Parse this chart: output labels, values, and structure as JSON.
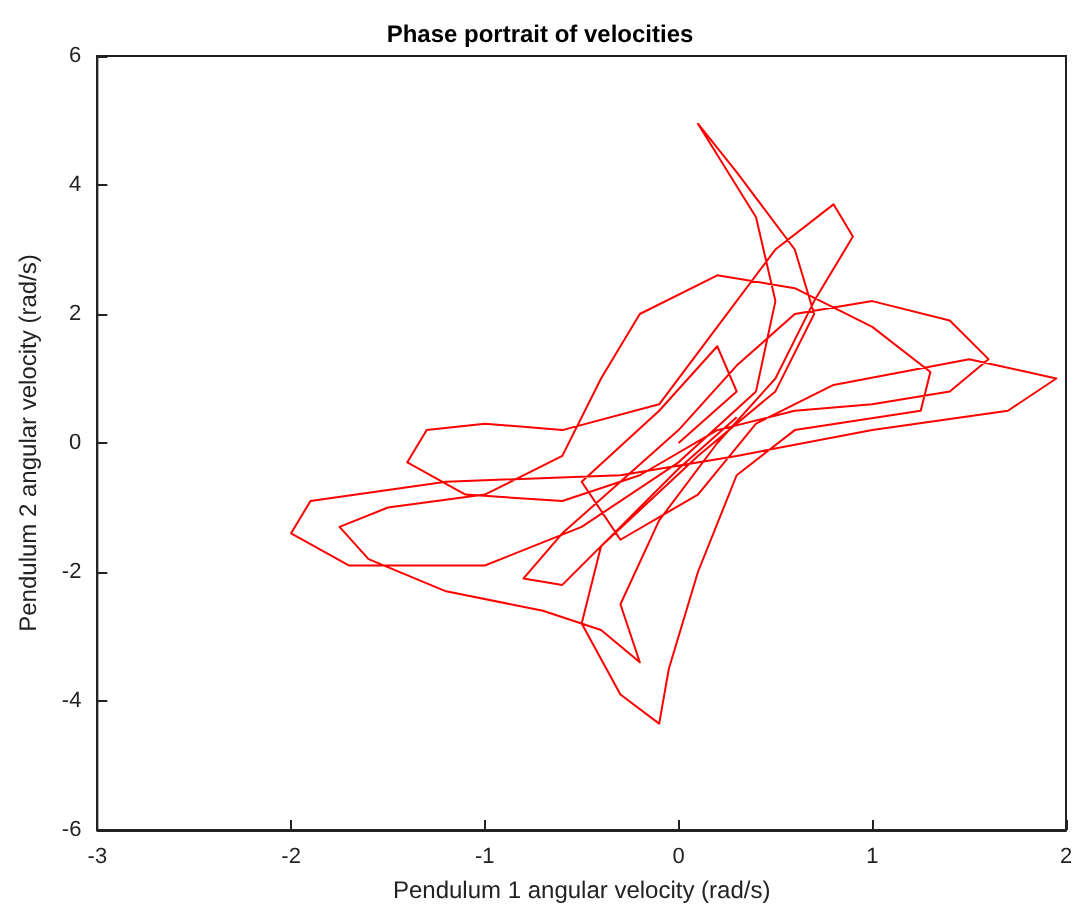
{
  "chart_data": {
    "type": "line",
    "title": "Phase portrait of velocities",
    "xlabel": "Pendulum 1 angular velocity (rad/s)",
    "ylabel": "Pendulum 2 angular velocity (rad/s)",
    "xlim": [
      -3,
      2
    ],
    "xticks": [
      -3,
      -2,
      -1,
      0,
      1,
      2
    ],
    "ylim": [
      -6,
      6
    ],
    "yticks": [
      -6,
      -4,
      -2,
      0,
      2,
      4,
      6
    ],
    "grid": false,
    "marker": "none",
    "line_style": "solid",
    "series": [
      {
        "color": "#ff0000",
        "x": [
          0,
          0.3,
          0.2,
          -0.1,
          -0.5,
          -0.3,
          0.1,
          0.4,
          0.8,
          1.5,
          1.95,
          1.7,
          1.0,
          0.3,
          -0.3,
          -1.2,
          -1.9,
          -2.0,
          -1.7,
          -1.0,
          -0.5,
          0,
          0.4,
          0.5,
          0.4,
          0.1,
          0.3,
          0.6,
          0.7,
          0.5,
          0.1,
          -0.4,
          -0.5,
          -0.3,
          -0.1,
          -0.05,
          0.1,
          0.3,
          0.6,
          1.25,
          1.3,
          1.0,
          0.6,
          0.2,
          -0.2,
          -0.4,
          -0.6,
          -1.0,
          -1.5,
          -1.75,
          -1.6,
          -1.2,
          -0.7,
          -0.4,
          -0.2,
          -0.3,
          -0.1,
          0.2,
          0.5,
          0.7,
          0.9,
          0.8,
          0.5,
          0.2,
          -0.1,
          -0.6,
          -1.0,
          -1.3,
          -1.4,
          -1.1,
          -0.6,
          -0.2,
          0.2,
          0.6,
          1.0,
          1.4,
          1.6,
          1.4,
          1.0,
          0.6,
          0.3,
          0,
          -0.3,
          -0.6,
          -0.8,
          -0.6,
          -0.3,
          0,
          0.3
        ],
        "values": [
          0,
          0.8,
          1.5,
          0.5,
          -0.6,
          -1.5,
          -0.8,
          0.3,
          0.9,
          1.3,
          1.0,
          0.5,
          0.2,
          -0.2,
          -0.5,
          -0.6,
          -0.9,
          -1.4,
          -1.9,
          -1.9,
          -1.3,
          -0.3,
          0.8,
          2.2,
          3.5,
          4.95,
          4.2,
          3.0,
          2.0,
          0.8,
          -0.2,
          -1.6,
          -2.8,
          -3.9,
          -4.35,
          -3.5,
          -2.0,
          -0.5,
          0.2,
          0.5,
          1.1,
          1.8,
          2.4,
          2.6,
          2.0,
          1.0,
          -0.2,
          -0.8,
          -1.0,
          -1.3,
          -1.8,
          -2.3,
          -2.6,
          -2.9,
          -3.4,
          -2.5,
          -1.2,
          0,
          1.0,
          2.2,
          3.2,
          3.7,
          3.0,
          1.8,
          0.6,
          0.2,
          0.3,
          0.2,
          -0.3,
          -0.8,
          -0.9,
          -0.5,
          0.2,
          0.5,
          0.6,
          0.8,
          1.3,
          1.9,
          2.2,
          2.0,
          1.2,
          0.2,
          -0.6,
          -1.4,
          -2.1,
          -2.2,
          -1.3,
          -0.4,
          0.4
        ]
      }
    ]
  }
}
